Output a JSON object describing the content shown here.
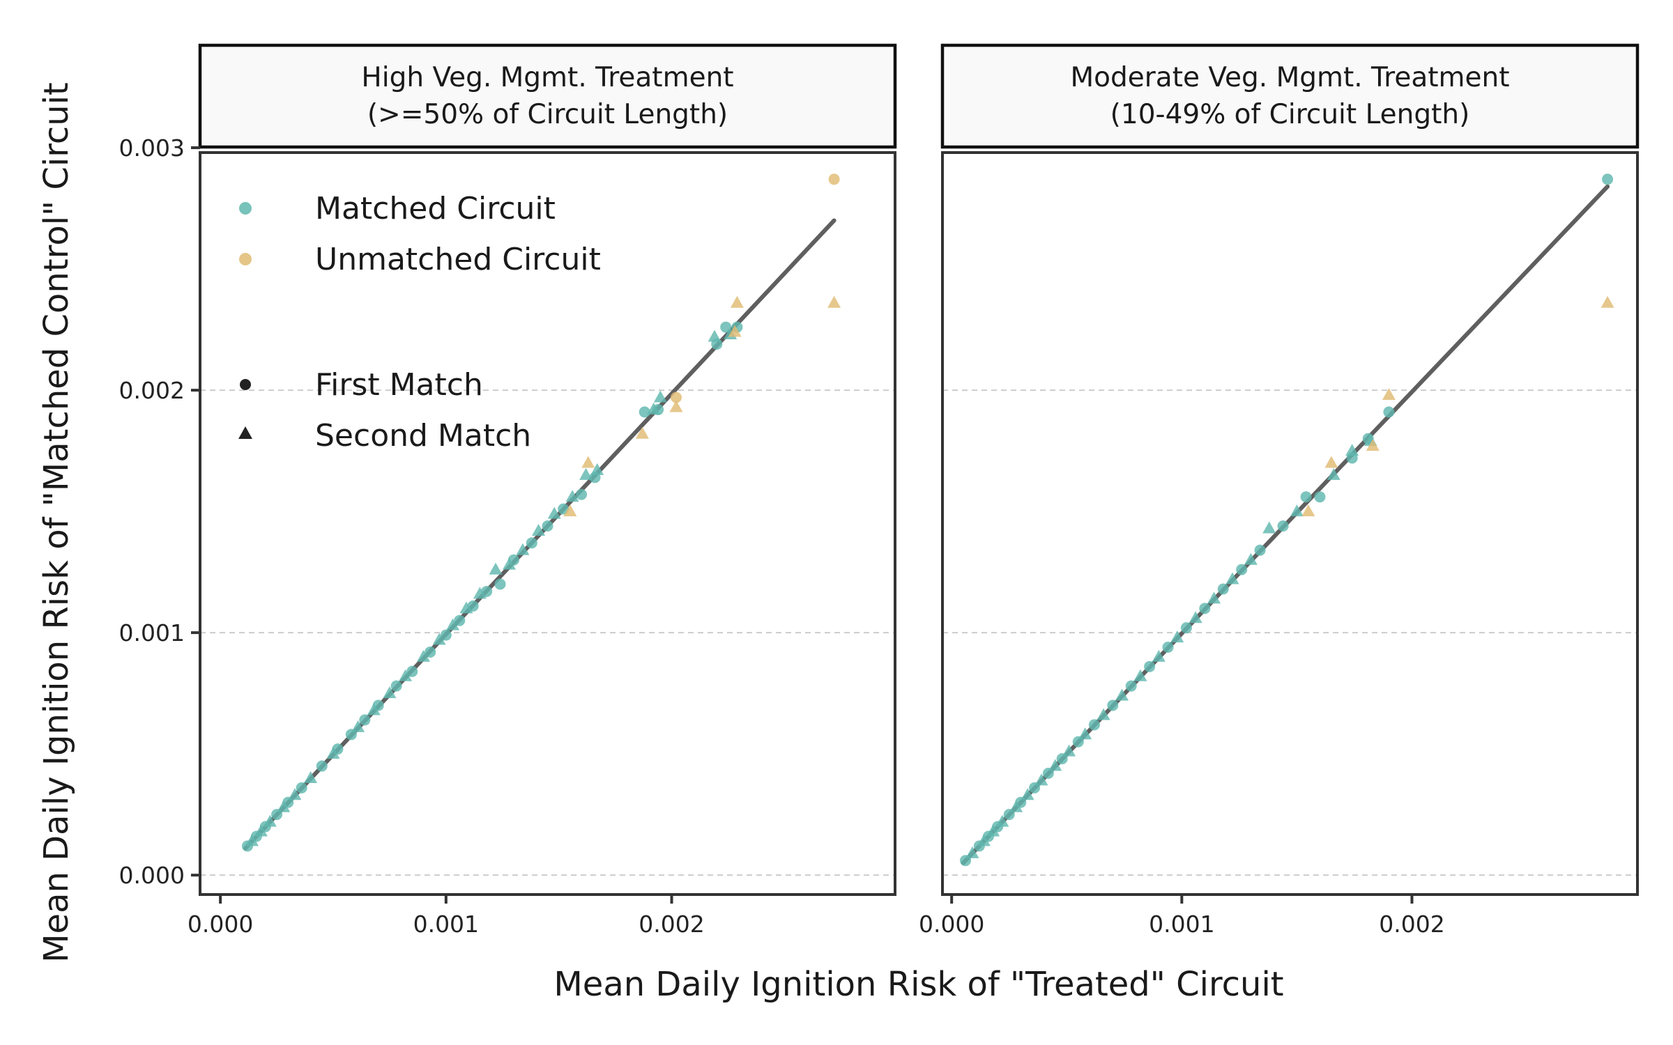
{
  "figure": {
    "xlabel": "Mean Daily Ignition Risk of \"Treated\" Circuit",
    "ylabel": "Mean Daily Ignition Risk of \"Matched Control\" Circuit"
  },
  "colors": {
    "matched": "#5fb7ae",
    "unmatched": "#e0bb73",
    "fit_line": "#5f5f5f",
    "panel_border": "#333333",
    "strip_fill": "#f9f9f9",
    "grid": "#cccccc"
  },
  "legend": {
    "color_items": [
      {
        "label": "Matched Circuit",
        "color": "#5fb7ae"
      },
      {
        "label": "Unmatched Circuit",
        "color": "#e0bb73"
      }
    ],
    "shape_items": [
      {
        "label": "First Match",
        "shape": "circle"
      },
      {
        "label": "Second Match",
        "shape": "triangle"
      }
    ]
  },
  "chart_data": [
    {
      "type": "scatter",
      "title_line1": "High Veg. Mgmt. Treatment",
      "title_line2": "(>=50% of Circuit Length)",
      "xlim": [
        -9e-05,
        0.00299
      ],
      "ylim": [
        -8e-05,
        0.00298
      ],
      "xticks": [
        0.0,
        0.001,
        0.002
      ],
      "xtick_labels": [
        "0.000",
        "0.001",
        "0.002"
      ],
      "yticks": [
        0.0,
        0.001,
        0.002,
        0.003
      ],
      "ytick_labels": [
        "0.000",
        "0.001",
        "0.002",
        "0.003"
      ],
      "grid": "horizontal dashed",
      "fit_line": {
        "x": [
          0.00011,
          0.00272
        ],
        "y": [
          0.00011,
          0.0027
        ]
      },
      "series": [
        {
          "name": "Matched Circuit",
          "marker": "First Match",
          "color": "matched",
          "x": [
            0.00012,
            0.00016,
            0.0002,
            0.00025,
            0.0003,
            0.00036,
            0.00045,
            0.00052,
            0.00058,
            0.00064,
            0.0007,
            0.00078,
            0.00085,
            0.00093,
            0.001,
            0.00106,
            0.00112,
            0.00118,
            0.00124,
            0.0013,
            0.00138,
            0.00145,
            0.00152,
            0.0016,
            0.00166,
            0.00188,
            0.00194,
            0.00224,
            0.00229,
            0.0022
          ],
          "y": [
            0.00012,
            0.00016,
            0.0002,
            0.00025,
            0.0003,
            0.00036,
            0.00045,
            0.00052,
            0.00058,
            0.00064,
            0.0007,
            0.00078,
            0.00084,
            0.00092,
            0.00099,
            0.00105,
            0.00111,
            0.00117,
            0.0012,
            0.0013,
            0.00137,
            0.00144,
            0.00151,
            0.00157,
            0.00164,
            0.00191,
            0.00192,
            0.00226,
            0.00226,
            0.00219
          ]
        },
        {
          "name": "Matched Circuit",
          "marker": "Second Match",
          "color": "matched",
          "x": [
            0.00014,
            0.00018,
            0.00022,
            0.00028,
            0.00033,
            0.0004,
            0.0005,
            0.00061,
            0.00068,
            0.00075,
            0.00082,
            0.0009,
            0.00097,
            0.00103,
            0.00109,
            0.00115,
            0.00122,
            0.00128,
            0.00134,
            0.00141,
            0.00148,
            0.00156,
            0.00162,
            0.00167,
            0.00192,
            0.00195,
            0.00219,
            0.00226
          ],
          "y": [
            0.00014,
            0.00018,
            0.00022,
            0.00028,
            0.00033,
            0.0004,
            0.0005,
            0.00061,
            0.00068,
            0.00075,
            0.00082,
            0.0009,
            0.00097,
            0.00103,
            0.0011,
            0.00116,
            0.00126,
            0.00128,
            0.00134,
            0.00142,
            0.00149,
            0.00156,
            0.00165,
            0.00167,
            0.00192,
            0.00197,
            0.00222,
            0.00223
          ]
        },
        {
          "name": "Unmatched Circuit",
          "marker": "First Match",
          "color": "unmatched",
          "x": [
            0.00272,
            0.00202
          ],
          "y": [
            0.00287,
            0.00197
          ]
        },
        {
          "name": "Unmatched Circuit",
          "marker": "Second Match",
          "color": "unmatched",
          "x": [
            0.00272,
            0.00229,
            0.00228,
            0.00187,
            0.00202,
            0.00155,
            0.00163
          ],
          "y": [
            0.00236,
            0.00236,
            0.00224,
            0.00182,
            0.00193,
            0.0015,
            0.0017
          ]
        }
      ]
    },
    {
      "type": "scatter",
      "title_line1": "Moderate Veg. Mgmt. Treatment",
      "title_line2": "(10-49% of Circuit Length)",
      "xlim": [
        -4e-05,
        0.00298
      ],
      "ylim": [
        -8e-05,
        0.00298
      ],
      "xticks": [
        0.0,
        0.001,
        0.002
      ],
      "xtick_labels": [
        "0.000",
        "0.001",
        "0.002"
      ],
      "yticks": [
        0.0,
        0.001,
        0.002,
        0.003
      ],
      "grid": "horizontal dashed",
      "fit_line": {
        "x": [
          5e-05,
          0.00285
        ],
        "y": [
          5e-05,
          0.00284
        ]
      },
      "series": [
        {
          "name": "Matched Circuit",
          "marker": "First Match",
          "color": "matched",
          "x": [
            6e-05,
            0.00012,
            0.00016,
            0.0002,
            0.00025,
            0.0003,
            0.00036,
            0.00042,
            0.00048,
            0.00055,
            0.00062,
            0.0007,
            0.00078,
            0.00086,
            0.00094,
            0.00102,
            0.0011,
            0.00118,
            0.00126,
            0.00134,
            0.00144,
            0.00154,
            0.0016,
            0.00174,
            0.00181,
            0.0019,
            0.00285
          ],
          "y": [
            6e-05,
            0.00012,
            0.00016,
            0.0002,
            0.00025,
            0.0003,
            0.00036,
            0.00042,
            0.00048,
            0.00055,
            0.00062,
            0.0007,
            0.00078,
            0.00086,
            0.00094,
            0.00102,
            0.0011,
            0.00118,
            0.00126,
            0.00134,
            0.00144,
            0.00156,
            0.00156,
            0.00172,
            0.0018,
            0.00191,
            0.00287
          ]
        },
        {
          "name": "Matched Circuit",
          "marker": "Second Match",
          "color": "matched",
          "x": [
            9e-05,
            0.00014,
            0.00018,
            0.00022,
            0.00028,
            0.00033,
            0.00039,
            0.00045,
            0.00051,
            0.00058,
            0.00066,
            0.00074,
            0.00082,
            0.0009,
            0.00098,
            0.00106,
            0.00114,
            0.00122,
            0.0013,
            0.00138,
            0.0015,
            0.00166,
            0.00174,
            0.00182
          ],
          "y": [
            9e-05,
            0.00014,
            0.00018,
            0.00022,
            0.00028,
            0.00033,
            0.00039,
            0.00045,
            0.00051,
            0.00058,
            0.00066,
            0.00074,
            0.00082,
            0.0009,
            0.00098,
            0.00106,
            0.00114,
            0.00122,
            0.0013,
            0.00143,
            0.0015,
            0.00165,
            0.00175,
            0.00179
          ]
        },
        {
          "name": "Unmatched Circuit",
          "marker": "Second Match",
          "color": "unmatched",
          "x": [
            0.00285,
            0.0019,
            0.00165,
            0.00155,
            0.00183
          ],
          "y": [
            0.00236,
            0.00198,
            0.0017,
            0.0015,
            0.00177
          ]
        }
      ]
    }
  ]
}
